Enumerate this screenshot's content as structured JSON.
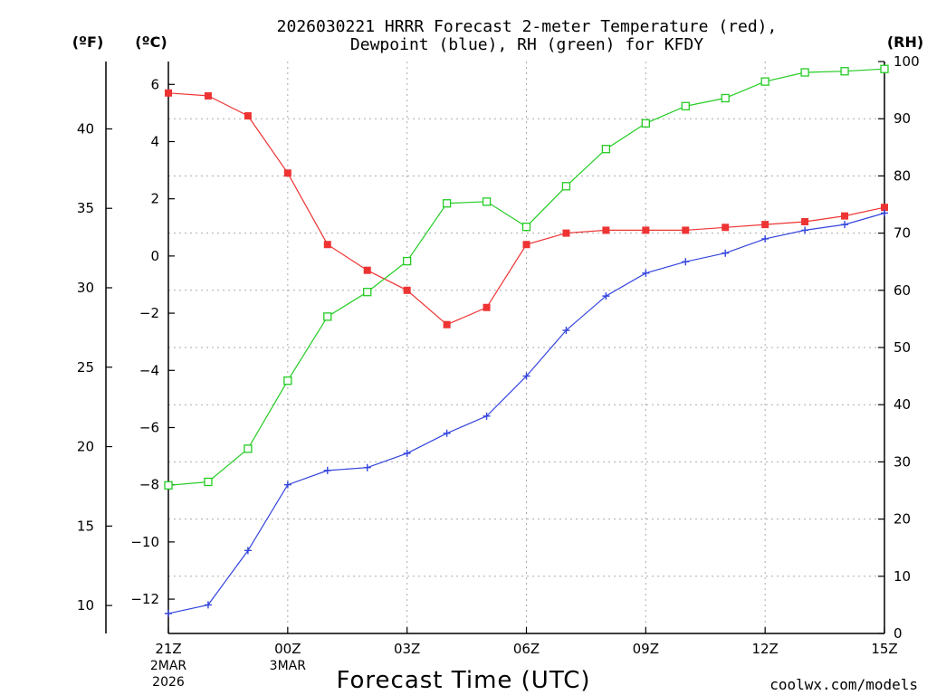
{
  "chart_data": {
    "type": "line",
    "title_line1": "2026030221 HRRR Forecast 2-meter Temperature (red),",
    "title_line2": "Dewpoint (blue), RH (green) for KFDY",
    "xlabel": "Forecast Time (UTC)",
    "credit": "coolwx.com/models",
    "units": {
      "fahrenheit": "(ºF)",
      "celsius": "(ºC)",
      "rh": "(RH)"
    },
    "x_ticks": [
      {
        "hour": 0,
        "label": "21Z",
        "sub1": "2MAR",
        "sub2": "2026"
      },
      {
        "hour": 3,
        "label": "00Z",
        "sub1": "3MAR",
        "sub2": ""
      },
      {
        "hour": 6,
        "label": "03Z",
        "sub1": "",
        "sub2": ""
      },
      {
        "hour": 9,
        "label": "06Z",
        "sub1": "",
        "sub2": ""
      },
      {
        "hour": 12,
        "label": "09Z",
        "sub1": "",
        "sub2": ""
      },
      {
        "hour": 15,
        "label": "12Z",
        "sub1": "",
        "sub2": ""
      },
      {
        "hour": 18,
        "label": "15Z",
        "sub1": "",
        "sub2": ""
      }
    ],
    "xlim": [
      0,
      18
    ],
    "celsius_ylim": [
      -13.2,
      6.8
    ],
    "celsius_ticks": [
      "6",
      "4",
      "2",
      "0",
      "−2",
      "−4",
      "−6",
      "−8",
      "−10",
      "−12"
    ],
    "fahrenheit_ticks": [
      "40",
      "35",
      "30",
      "25",
      "20",
      "15",
      "10"
    ],
    "rh_ylim": [
      0,
      100
    ],
    "rh_ticks": [
      "100",
      "90",
      "80",
      "70",
      "60",
      "50",
      "40",
      "30",
      "20",
      "10",
      "0"
    ],
    "grid": true,
    "colors": {
      "temperature": "#ee3333",
      "dewpoint": "#3344dd",
      "rh": "#22cc22",
      "credit": "#e04444"
    },
    "series": [
      {
        "key": "temperature",
        "axis": "celsius",
        "marker": "filled-square",
        "values": [
          5.7,
          5.6,
          4.9,
          2.9,
          0.4,
          -0.5,
          -1.2,
          -2.4,
          -1.8,
          0.4,
          0.8,
          0.9,
          0.9,
          0.9,
          1.0,
          1.1,
          1.2,
          1.4,
          1.7
        ]
      },
      {
        "key": "dewpoint",
        "axis": "celsius",
        "marker": "plus",
        "values": [
          -12.5,
          -12.2,
          -10.3,
          -8.0,
          -7.5,
          -7.4,
          -6.9,
          -6.2,
          -5.6,
          -4.2,
          -2.6,
          -1.4,
          -0.6,
          -0.2,
          0.1,
          0.6,
          0.9,
          1.1,
          1.5
        ]
      },
      {
        "key": "rh",
        "axis": "rh",
        "marker": "open-square",
        "values": [
          25.9,
          26.5,
          32.3,
          44.2,
          55.4,
          59.7,
          65.1,
          75.2,
          75.5,
          71.1,
          78.2,
          84.7,
          89.2,
          92.2,
          93.6,
          96.5,
          98.1,
          98.3,
          98.7
        ]
      }
    ]
  }
}
